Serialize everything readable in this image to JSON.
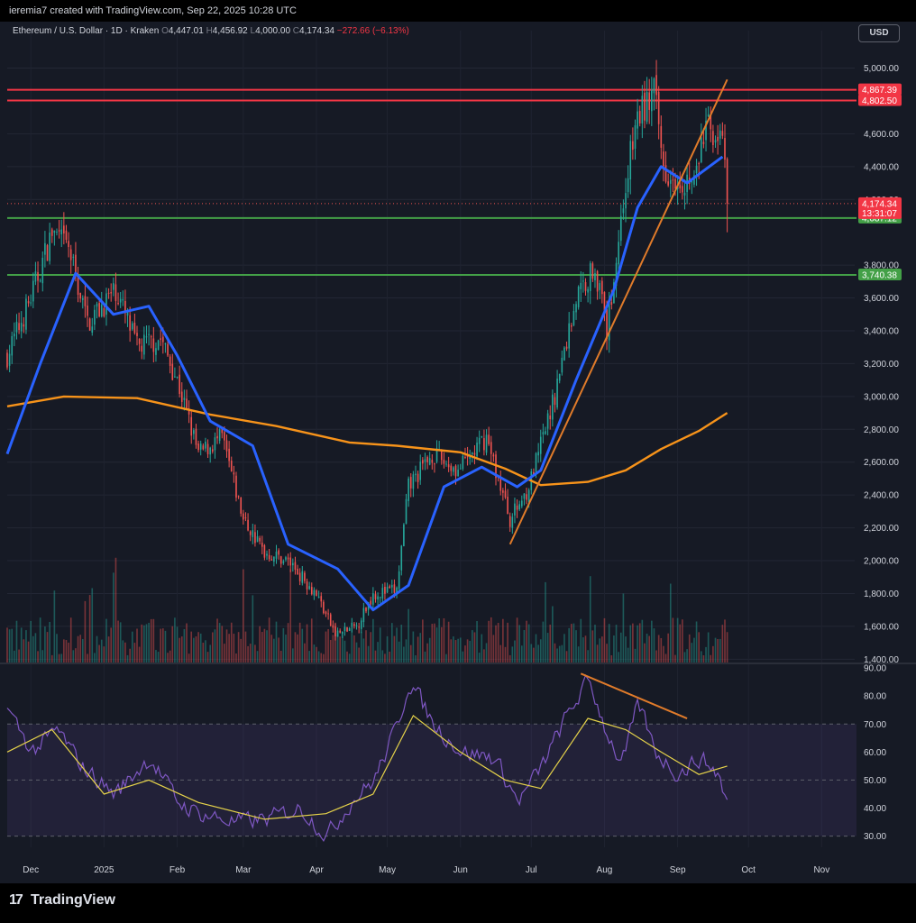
{
  "header": {
    "credit": "ieremia7 created with TradingView.com, Sep 22, 2025 10:28 UTC"
  },
  "legend": {
    "symbol": "Ethereum / U.S. Dollar · 1D · Kraken",
    "open_label": "O",
    "open": "4,447.01",
    "high_label": "H",
    "high": "4,456.92",
    "low_label": "L",
    "low": "4,000.00",
    "close_label": "C",
    "close": "4,174.34",
    "change": "−272.66 (−6.13%)"
  },
  "currency_button": "USD",
  "footer": {
    "brand": "TradingView",
    "logo": "tradingview-logo-icon"
  },
  "colors": {
    "background": "#161a25",
    "up": "#26a69a",
    "down": "#ef5350",
    "ema_fast": "#2962ff",
    "ema_slow": "#f7931a",
    "resistance": "#f23645",
    "support": "#43a047",
    "trendline": "#e07b2a",
    "rsi": "#7e57c2",
    "rsi_ma": "#e6d34a"
  },
  "chart_data": [
    {
      "type": "line",
      "subtype": "candlestick",
      "title": "",
      "x_ticks": [
        "Dec",
        "2025",
        "Feb",
        "Mar",
        "Apr",
        "May",
        "Jun",
        "Jul",
        "Aug",
        "Sep",
        "Oct",
        "Nov"
      ],
      "y_ticks": [
        "5,000.00",
        "4,600.00",
        "4,400.00",
        "4,200.00",
        "3,800.00",
        "3,600.00",
        "3,400.00",
        "3,200.00",
        "3,000.00",
        "2,800.00",
        "2,600.00",
        "2,400.00",
        "2,200.00",
        "2,000.00",
        "1,800.00",
        "1,600.00",
        "1,400.00"
      ],
      "ylim": [
        1380,
        5140
      ],
      "price_series": {
        "name": "",
        "x": [
          "2024-11-21",
          "2024-12-01",
          "2024-12-10",
          "2024-12-17",
          "2024-12-25",
          "2025-01-06",
          "2025-01-15",
          "2025-01-25",
          "2025-02-01",
          "2025-02-10",
          "2025-02-20",
          "2025-03-01",
          "2025-03-10",
          "2025-03-20",
          "2025-04-01",
          "2025-04-09",
          "2025-04-18",
          "2025-04-25",
          "2025-05-05",
          "2025-05-10",
          "2025-05-20",
          "2025-05-31",
          "2025-06-12",
          "2025-06-22",
          "2025-06-30",
          "2025-07-10",
          "2025-07-20",
          "2025-07-28",
          "2025-08-02",
          "2025-08-10",
          "2025-08-15",
          "2025-08-22",
          "2025-08-26",
          "2025-09-01",
          "2025-09-08",
          "2025-09-13",
          "2025-09-18",
          "2025-09-21",
          "2025-09-22"
        ],
        "values": [
          3250,
          3600,
          4000,
          3900,
          3450,
          3650,
          3300,
          3350,
          3100,
          2650,
          2750,
          2250,
          2050,
          2000,
          1800,
          1550,
          1600,
          1800,
          1820,
          2450,
          2650,
          2550,
          2750,
          2250,
          2450,
          2950,
          3600,
          3800,
          3400,
          4300,
          4700,
          4850,
          4400,
          4350,
          4300,
          4650,
          4600,
          4450,
          4174
        ]
      },
      "ema_fast": {
        "name": "",
        "x": [
          "2024-11-21",
          "2024-12-05",
          "2024-12-20",
          "2025-01-05",
          "2025-01-20",
          "2025-02-01",
          "2025-02-15",
          "2025-03-05",
          "2025-03-20",
          "2025-04-10",
          "2025-04-25",
          "2025-05-10",
          "2025-05-25",
          "2025-06-10",
          "2025-06-25",
          "2025-07-05",
          "2025-07-20",
          "2025-08-05",
          "2025-08-15",
          "2025-08-25",
          "2025-09-05",
          "2025-09-20"
        ],
        "values": [
          2650,
          3200,
          3750,
          3500,
          3550,
          3250,
          2850,
          2700,
          2100,
          1950,
          1700,
          1850,
          2450,
          2570,
          2450,
          2550,
          3100,
          3650,
          4150,
          4400,
          4300,
          4460
        ]
      },
      "ema_slow": {
        "name": "",
        "x": [
          "2024-11-21",
          "2024-12-15",
          "2025-01-15",
          "2025-02-15",
          "2025-03-15",
          "2025-04-15",
          "2025-05-05",
          "2025-06-01",
          "2025-06-20",
          "2025-07-05",
          "2025-07-25",
          "2025-08-10",
          "2025-08-25",
          "2025-09-10",
          "2025-09-22"
        ],
        "values": [
          2940,
          3000,
          2990,
          2890,
          2820,
          2720,
          2700,
          2660,
          2560,
          2460,
          2480,
          2550,
          2680,
          2790,
          2900
        ]
      },
      "horizontal_levels": [
        {
          "value": 4867.39,
          "label": "4,867.39",
          "kind": "resistance"
        },
        {
          "value": 4802.5,
          "label": "4,802.50",
          "kind": "resistance"
        },
        {
          "value": 4087.12,
          "label": "4,087.12",
          "kind": "support"
        },
        {
          "value": 3740.38,
          "label": "3,740.38",
          "kind": "support"
        }
      ],
      "last_price": {
        "value": 4174.34,
        "label": "4,174.34",
        "countdown": "13:31:07"
      },
      "trendline": {
        "from": {
          "x": "2025-06-22",
          "y": 2100
        },
        "to": {
          "x": "2025-09-22",
          "y": 4930
        }
      },
      "grid": true
    },
    {
      "type": "line",
      "title": "",
      "y_ticks": [
        "90.00",
        "80.00",
        "70.00",
        "60.00",
        "50.00",
        "40.00",
        "30.00"
      ],
      "ylim": [
        26,
        91
      ],
      "bands": {
        "upper": 70,
        "middle": 50,
        "lower": 30
      },
      "rsi": {
        "name": "",
        "x": [
          "2024-11-21",
          "2024-12-01",
          "2024-12-12",
          "2024-12-22",
          "2025-01-05",
          "2025-01-20",
          "2025-02-01",
          "2025-02-10",
          "2025-02-25",
          "2025-03-10",
          "2025-03-25",
          "2025-04-05",
          "2025-04-15",
          "2025-04-25",
          "2025-05-05",
          "2025-05-10",
          "2025-05-20",
          "2025-06-01",
          "2025-06-15",
          "2025-06-25",
          "2025-07-05",
          "2025-07-15",
          "2025-07-25",
          "2025-08-01",
          "2025-08-08",
          "2025-08-15",
          "2025-08-22",
          "2025-09-01",
          "2025-09-10",
          "2025-09-18",
          "2025-09-22"
        ],
        "values": [
          75,
          60,
          68,
          55,
          45,
          58,
          42,
          38,
          35,
          36,
          40,
          30,
          42,
          50,
          70,
          86,
          70,
          60,
          58,
          42,
          55,
          72,
          86,
          68,
          55,
          78,
          60,
          52,
          58,
          52,
          40
        ]
      },
      "rsi_ma": {
        "name": "",
        "x": [
          "2024-11-21",
          "2024-12-10",
          "2025-01-01",
          "2025-01-20",
          "2025-02-10",
          "2025-03-10",
          "2025-04-05",
          "2025-04-25",
          "2025-05-12",
          "2025-06-01",
          "2025-06-20",
          "2025-07-05",
          "2025-07-25",
          "2025-08-10",
          "2025-08-25",
          "2025-09-10",
          "2025-09-22"
        ],
        "values": [
          60,
          68,
          45,
          50,
          42,
          36,
          38,
          45,
          73,
          60,
          50,
          47,
          72,
          68,
          60,
          52,
          55
        ]
      },
      "divergence_line": {
        "from": {
          "x": "2025-07-22",
          "y": 88
        },
        "to": {
          "x": "2025-09-05",
          "y": 72
        }
      }
    }
  ]
}
